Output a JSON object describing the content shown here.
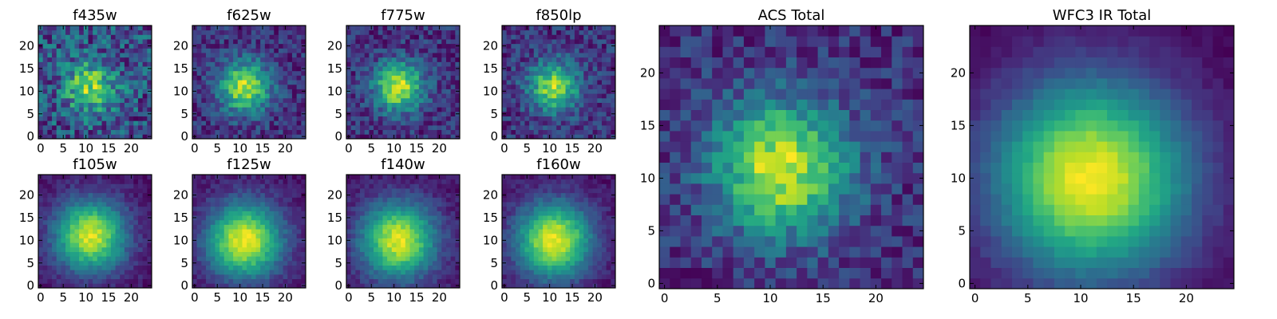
{
  "chart_data": [
    {
      "type": "heatmap",
      "title": "f435w",
      "x_ticks": [
        0,
        5,
        10,
        15,
        20
      ],
      "y_ticks": [
        0,
        5,
        10,
        15,
        20
      ],
      "xlim": [
        0,
        25
      ],
      "ylim": [
        0,
        25
      ],
      "grid": false,
      "noise": 0.55,
      "seed": 11,
      "peak": [
        11,
        11
      ],
      "sigma": 4.0,
      "bg": 0.45
    },
    {
      "type": "heatmap",
      "title": "f625w",
      "x_ticks": [
        0,
        5,
        10,
        15,
        20
      ],
      "y_ticks": [
        0,
        5,
        10,
        15,
        20
      ],
      "xlim": [
        0,
        25
      ],
      "ylim": [
        0,
        25
      ],
      "grid": false,
      "noise": 0.25,
      "seed": 23,
      "peak": [
        11,
        11
      ],
      "sigma": 4.0,
      "bg": 0.25
    },
    {
      "type": "heatmap",
      "title": "f775w",
      "x_ticks": [
        0,
        5,
        10,
        15,
        20
      ],
      "y_ticks": [
        0,
        5,
        10,
        15,
        20
      ],
      "xlim": [
        0,
        25
      ],
      "ylim": [
        0,
        25
      ],
      "grid": false,
      "noise": 0.25,
      "seed": 37,
      "peak": [
        11,
        11
      ],
      "sigma": 3.8,
      "bg": 0.25
    },
    {
      "type": "heatmap",
      "title": "f850lp",
      "x_ticks": [
        0,
        5,
        10,
        15,
        20
      ],
      "y_ticks": [
        0,
        5,
        10,
        15,
        20
      ],
      "xlim": [
        0,
        25
      ],
      "ylim": [
        0,
        25
      ],
      "grid": false,
      "noise": 0.28,
      "seed": 41,
      "peak": [
        11,
        11
      ],
      "sigma": 3.8,
      "bg": 0.28
    },
    {
      "type": "heatmap",
      "title": "f105w",
      "x_ticks": [
        0,
        5,
        10,
        15,
        20
      ],
      "y_ticks": [
        0,
        5,
        10,
        15,
        20
      ],
      "xlim": [
        0,
        25
      ],
      "ylim": [
        0,
        25
      ],
      "grid": false,
      "noise": 0.1,
      "seed": 53,
      "peak": [
        11,
        11
      ],
      "sigma": 5.5,
      "bg": 0.12
    },
    {
      "type": "heatmap",
      "title": "f125w",
      "x_ticks": [
        0,
        5,
        10,
        15,
        20
      ],
      "y_ticks": [
        0,
        5,
        10,
        15,
        20
      ],
      "xlim": [
        0,
        25
      ],
      "ylim": [
        0,
        25
      ],
      "grid": false,
      "noise": 0.09,
      "seed": 67,
      "peak": [
        11,
        10
      ],
      "sigma": 5.8,
      "bg": 0.1
    },
    {
      "type": "heatmap",
      "title": "f140w",
      "x_ticks": [
        0,
        5,
        10,
        15,
        20
      ],
      "y_ticks": [
        0,
        5,
        10,
        15,
        20
      ],
      "xlim": [
        0,
        25
      ],
      "ylim": [
        0,
        25
      ],
      "grid": false,
      "noise": 0.1,
      "seed": 71,
      "peak": [
        11,
        10
      ],
      "sigma": 5.8,
      "bg": 0.1
    },
    {
      "type": "heatmap",
      "title": "f160w",
      "x_ticks": [
        0,
        5,
        10,
        15,
        20
      ],
      "y_ticks": [
        0,
        5,
        10,
        15,
        20
      ],
      "xlim": [
        0,
        25
      ],
      "ylim": [
        0,
        25
      ],
      "grid": false,
      "noise": 0.09,
      "seed": 83,
      "peak": [
        11,
        10
      ],
      "sigma": 5.8,
      "bg": 0.1
    },
    {
      "type": "heatmap",
      "title": "ACS Total",
      "x_ticks": [
        0,
        5,
        10,
        15,
        20
      ],
      "y_ticks": [
        0,
        5,
        10,
        15,
        20
      ],
      "xlim": [
        0,
        25
      ],
      "ylim": [
        0,
        25
      ],
      "grid": false,
      "noise": 0.22,
      "seed": 97,
      "peak": [
        11,
        11
      ],
      "sigma": 4.5,
      "bg": 0.3
    },
    {
      "type": "heatmap",
      "title": "WFC3 IR Total",
      "x_ticks": [
        0,
        5,
        10,
        15,
        20
      ],
      "y_ticks": [
        0,
        5,
        10,
        15,
        20
      ],
      "xlim": [
        0,
        25
      ],
      "ylim": [
        0,
        25
      ],
      "grid": false,
      "noise": 0.04,
      "seed": 101,
      "peak": [
        11,
        10
      ],
      "sigma": 6.5,
      "bg": 0.08
    }
  ],
  "colormap": "viridis"
}
